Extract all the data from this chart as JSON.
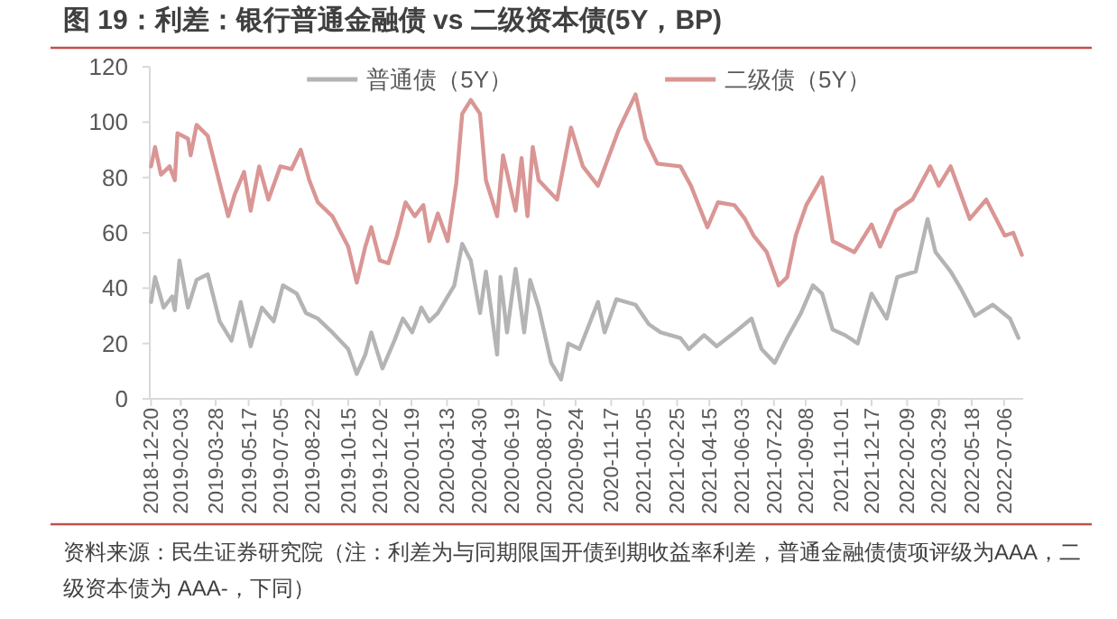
{
  "chart_data": {
    "type": "line",
    "title": "图 19：利差：银行普通金融债 vs 二级资本债(5Y，BP)",
    "annotations": [
      "资料来源：民生证券研究院（注：利差为与同期限国开债到期收益率利差，普通金融债债项评级为AAA，二级资本债为 AAA-，下同）"
    ],
    "legend": "top",
    "xlim": [
      "2018-12-18",
      "2022-08-04"
    ],
    "xticks": [
      "2018-12-20",
      "2019-02-03",
      "2019-03-28",
      "2019-05-17",
      "2019-07-05",
      "2019-08-22",
      "2019-10-15",
      "2019-12-02",
      "2020-01-19",
      "2020-03-13",
      "2020-04-30",
      "2020-06-19",
      "2020-08-07",
      "2020-09-24",
      "2020-11-17",
      "2021-01-05",
      "2021-02-25",
      "2021-04-15",
      "2021-06-03",
      "2021-07-22",
      "2021-09-08",
      "2021-11-01",
      "2021-12-17",
      "2022-02-09",
      "2022-03-29",
      "2022-05-18",
      "2022-07-06"
    ],
    "ylim": [
      0,
      120
    ],
    "yticks": [
      0,
      20,
      40,
      60,
      80,
      100,
      120
    ],
    "series": [
      {
        "name": "普通债（5Y）",
        "color": "#b4b4b4",
        "x": [
          "2018-12-20",
          "2018-12-26",
          "2019-01-08",
          "2019-01-21",
          "2019-01-25",
          "2019-02-01",
          "2019-02-14",
          "2019-02-27",
          "2019-03-16",
          "2019-04-03",
          "2019-04-21",
          "2019-05-05",
          "2019-05-20",
          "2019-06-06",
          "2019-06-24",
          "2019-07-08",
          "2019-07-29",
          "2019-08-12",
          "2019-08-30",
          "2019-09-21",
          "2019-10-15",
          "2019-10-28",
          "2019-11-10",
          "2019-11-19",
          "2019-12-06",
          "2019-12-24",
          "2020-01-06",
          "2020-01-20",
          "2020-02-03",
          "2020-02-15",
          "2020-02-28",
          "2020-03-24",
          "2020-04-05",
          "2020-04-18",
          "2020-05-02",
          "2020-05-11",
          "2020-05-28",
          "2020-06-02",
          "2020-06-12",
          "2020-06-25",
          "2020-07-08",
          "2020-07-17",
          "2020-07-30",
          "2020-08-18",
          "2020-09-02",
          "2020-09-13",
          "2020-09-30",
          "2020-10-28",
          "2020-11-07",
          "2020-11-25",
          "2020-12-24",
          "2021-01-13",
          "2021-01-31",
          "2021-03-02",
          "2021-03-15",
          "2021-04-07",
          "2021-04-26",
          "2021-05-23",
          "2021-06-18",
          "2021-07-03",
          "2021-07-23",
          "2021-08-11",
          "2021-09-01",
          "2021-09-19",
          "2021-10-03",
          "2021-10-19",
          "2021-11-07",
          "2021-11-26",
          "2021-12-17",
          "2022-01-09",
          "2022-01-25",
          "2022-02-22",
          "2022-03-12",
          "2022-03-24",
          "2022-04-16",
          "2022-05-01",
          "2022-05-23",
          "2022-06-19",
          "2022-07-15",
          "2022-07-28"
        ],
        "values": [
          35,
          44,
          33,
          37,
          32,
          50,
          33,
          43,
          45,
          28,
          21,
          35,
          19,
          33,
          28,
          41,
          38,
          31,
          29,
          24,
          18,
          9,
          16,
          24,
          11,
          21,
          29,
          24,
          33,
          28,
          31,
          41,
          56,
          50,
          31,
          46,
          16,
          44,
          24,
          47,
          24,
          43,
          33,
          13,
          7,
          20,
          18,
          35,
          24,
          36,
          34,
          27,
          24,
          22,
          18,
          23,
          19,
          24,
          29,
          18,
          13,
          22,
          31,
          41,
          38,
          25,
          23,
          20,
          38,
          29,
          44,
          46,
          65,
          53,
          46,
          40,
          30,
          34,
          29,
          22
        ]
      },
      {
        "name": "二级债（5Y）",
        "color": "#d99694",
        "x": [
          "2018-12-20",
          "2018-12-26",
          "2019-01-04",
          "2019-01-17",
          "2019-01-25",
          "2019-01-29",
          "2019-02-14",
          "2019-02-18",
          "2019-02-27",
          "2019-03-16",
          "2019-04-03",
          "2019-04-16",
          "2019-04-26",
          "2019-05-10",
          "2019-05-20",
          "2019-06-02",
          "2019-06-16",
          "2019-07-04",
          "2019-07-21",
          "2019-08-04",
          "2019-08-17",
          "2019-08-30",
          "2019-09-21",
          "2019-10-15",
          "2019-10-28",
          "2019-11-10",
          "2019-11-19",
          "2019-12-02",
          "2019-12-15",
          "2019-12-28",
          "2020-01-10",
          "2020-01-24",
          "2020-02-06",
          "2020-02-15",
          "2020-02-28",
          "2020-03-14",
          "2020-03-27",
          "2020-04-05",
          "2020-04-18",
          "2020-05-02",
          "2020-05-11",
          "2020-05-28",
          "2020-06-06",
          "2020-06-25",
          "2020-07-04",
          "2020-07-13",
          "2020-07-21",
          "2020-07-30",
          "2020-08-27",
          "2020-09-17",
          "2020-10-05",
          "2020-10-28",
          "2020-11-28",
          "2020-12-24",
          "2021-01-08",
          "2021-01-26",
          "2021-03-02",
          "2021-03-18",
          "2021-04-12",
          "2021-04-28",
          "2021-05-23",
          "2021-06-08",
          "2021-06-21",
          "2021-07-11",
          "2021-07-29",
          "2021-08-11",
          "2021-08-24",
          "2021-09-09",
          "2021-10-03",
          "2021-10-19",
          "2021-11-21",
          "2021-12-17",
          "2021-12-30",
          "2022-01-23",
          "2022-02-17",
          "2022-03-16",
          "2022-03-29",
          "2022-04-16",
          "2022-05-15",
          "2022-06-09",
          "2022-07-07",
          "2022-07-20",
          "2022-08-02"
        ],
        "values": [
          84,
          91,
          81,
          84,
          79,
          96,
          94,
          88,
          99,
          95,
          78,
          66,
          74,
          82,
          68,
          84,
          72,
          84,
          83,
          90,
          79,
          71,
          66,
          55,
          42,
          55,
          62,
          50,
          49,
          59,
          71,
          66,
          70,
          57,
          67,
          57,
          78,
          103,
          108,
          103,
          79,
          66,
          88,
          68,
          87,
          66,
          91,
          79,
          72,
          98,
          84,
          77,
          97,
          110,
          94,
          85,
          84,
          77,
          62,
          71,
          70,
          65,
          59,
          53,
          41,
          44,
          59,
          70,
          80,
          57,
          53,
          63,
          55,
          68,
          72,
          84,
          77,
          84,
          65,
          72,
          59,
          60,
          52
        ]
      }
    ]
  }
}
